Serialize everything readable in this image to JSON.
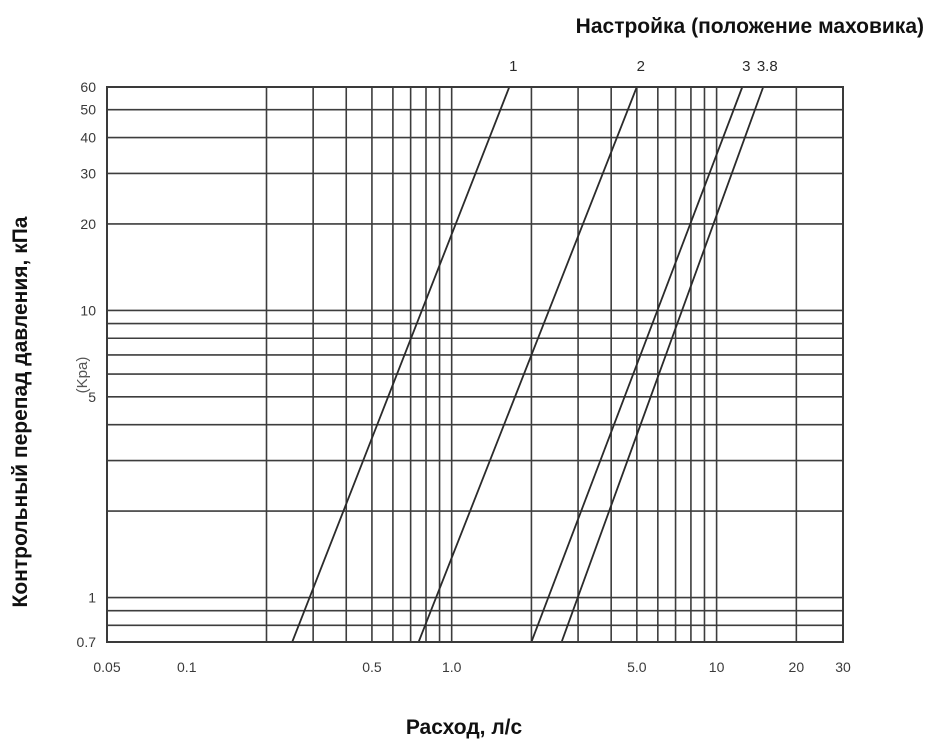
{
  "chart_data": {
    "type": "line",
    "title": "Настройка (положение маховика)",
    "xlabel": "Расход, л/с",
    "ylabel": "Контрольный перепад давления, кПа",
    "y_unit_label": "(Kpa)",
    "x_scale": "log",
    "y_scale": "log",
    "xlim": [
      0.05,
      30
    ],
    "ylim": [
      0.7,
      60
    ],
    "x_ticks": [
      {
        "value": 0.05,
        "label": "0.05"
      },
      {
        "value": 0.1,
        "label": "0.1"
      },
      {
        "value": 0.5,
        "label": "0.5"
      },
      {
        "value": 1.0,
        "label": "1.0"
      },
      {
        "value": 5.0,
        "label": "5.0"
      },
      {
        "value": 10,
        "label": "10"
      },
      {
        "value": 20,
        "label": "20"
      },
      {
        "value": 30,
        "label": "30"
      }
    ],
    "y_ticks": [
      {
        "value": 0.7,
        "label": "0.7"
      },
      {
        "value": 1,
        "label": "1"
      },
      {
        "value": 5,
        "label": "5"
      },
      {
        "value": 10,
        "label": "10"
      },
      {
        "value": 20,
        "label": "20"
      },
      {
        "value": 30,
        "label": "30"
      },
      {
        "value": 40,
        "label": "40"
      },
      {
        "value": 50,
        "label": "50"
      },
      {
        "value": 60,
        "label": "60"
      }
    ],
    "x_gridlines": [
      0.2,
      0.3,
      0.4,
      0.5,
      0.6,
      0.7,
      0.8,
      0.9,
      1.0,
      2.0,
      3.0,
      4.0,
      5.0,
      6.0,
      7.0,
      8.0,
      9.0,
      10,
      20
    ],
    "y_gridlines": [
      0.7,
      0.8,
      0.9,
      1,
      2,
      3,
      4,
      5,
      6,
      7,
      8,
      9,
      10,
      20,
      30,
      40,
      50
    ],
    "grid": true,
    "series": [
      {
        "name": "1",
        "points": [
          [
            0.25,
            0.7
          ],
          [
            1.65,
            60
          ]
        ]
      },
      {
        "name": "2",
        "points": [
          [
            0.75,
            0.7
          ],
          [
            5.0,
            60
          ]
        ]
      },
      {
        "name": "3",
        "points": [
          [
            2.0,
            0.7
          ],
          [
            12.5,
            60
          ]
        ]
      },
      {
        "name": "3.8",
        "points": [
          [
            2.6,
            0.7
          ],
          [
            15.0,
            60
          ]
        ]
      }
    ]
  }
}
